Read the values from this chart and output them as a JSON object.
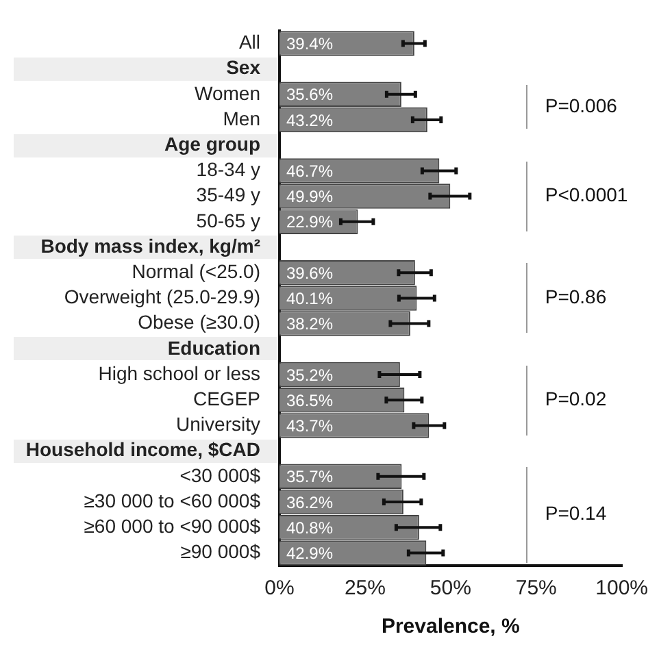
{
  "chart_data": {
    "type": "bar",
    "orientation": "horizontal",
    "xlabel": "Prevalence, %",
    "categories": [
      "All",
      "Sex",
      "Women",
      "Men",
      "Age group",
      "18-34 y",
      "35-49 y",
      "50-65 y",
      "Body mass index, kg/m²",
      "Normal (<25.0)",
      "Overweight (25.0-29.9)",
      "Obese (≥30.0)",
      "Education",
      "High school or less",
      "CEGEP",
      "University",
      "Household income, $CAD",
      "<30 000$",
      "≥30 000 to <60 000$",
      "≥60 000 to <90 000$",
      "≥90 000$"
    ],
    "values": [
      39.4,
      null,
      35.6,
      43.2,
      null,
      46.7,
      49.9,
      22.9,
      null,
      39.6,
      40.1,
      38.2,
      null,
      35.2,
      36.5,
      43.7,
      null,
      35.7,
      36.2,
      40.8,
      42.9
    ],
    "value_labels": [
      "39.4%",
      null,
      "35.6%",
      "43.2%",
      null,
      "46.7%",
      "49.9%",
      "22.9%",
      null,
      "39.6%",
      "40.1%",
      "38.2%",
      null,
      "35.2%",
      "36.5%",
      "43.7%",
      null,
      "35.7%",
      "36.2%",
      "40.8%",
      "42.9%"
    ],
    "errors": [
      [
        36.1,
        42.5
      ],
      null,
      [
        31.3,
        39.7
      ],
      [
        38.9,
        47.2
      ],
      null,
      [
        41.7,
        51.6
      ],
      [
        44.0,
        55.6
      ],
      [
        17.9,
        27.4
      ],
      null,
      [
        34.8,
        44.3
      ],
      [
        34.9,
        45.3
      ],
      [
        32.4,
        43.6
      ],
      null,
      [
        29.2,
        41.0
      ],
      [
        31.2,
        41.6
      ],
      [
        39.2,
        48.2
      ],
      null,
      [
        28.8,
        42.2
      ],
      [
        30.5,
        41.4
      ],
      [
        34.1,
        47.0
      ],
      [
        37.7,
        47.8
      ]
    ],
    "color": "#808080",
    "xlim": [
      0,
      100
    ],
    "xticks": [
      {
        "value": 0,
        "label": "0%"
      },
      {
        "value": 25,
        "label": "25%"
      },
      {
        "value": 50,
        "label": "50%"
      },
      {
        "value": 75,
        "label": "75%"
      },
      {
        "value": 100,
        "label": "100%"
      }
    ],
    "annotations": [
      "P=0.006",
      "P<0.0001",
      "P=0.86",
      "P=0.02",
      "P=0.14"
    ],
    "grid": false,
    "legend": false
  }
}
